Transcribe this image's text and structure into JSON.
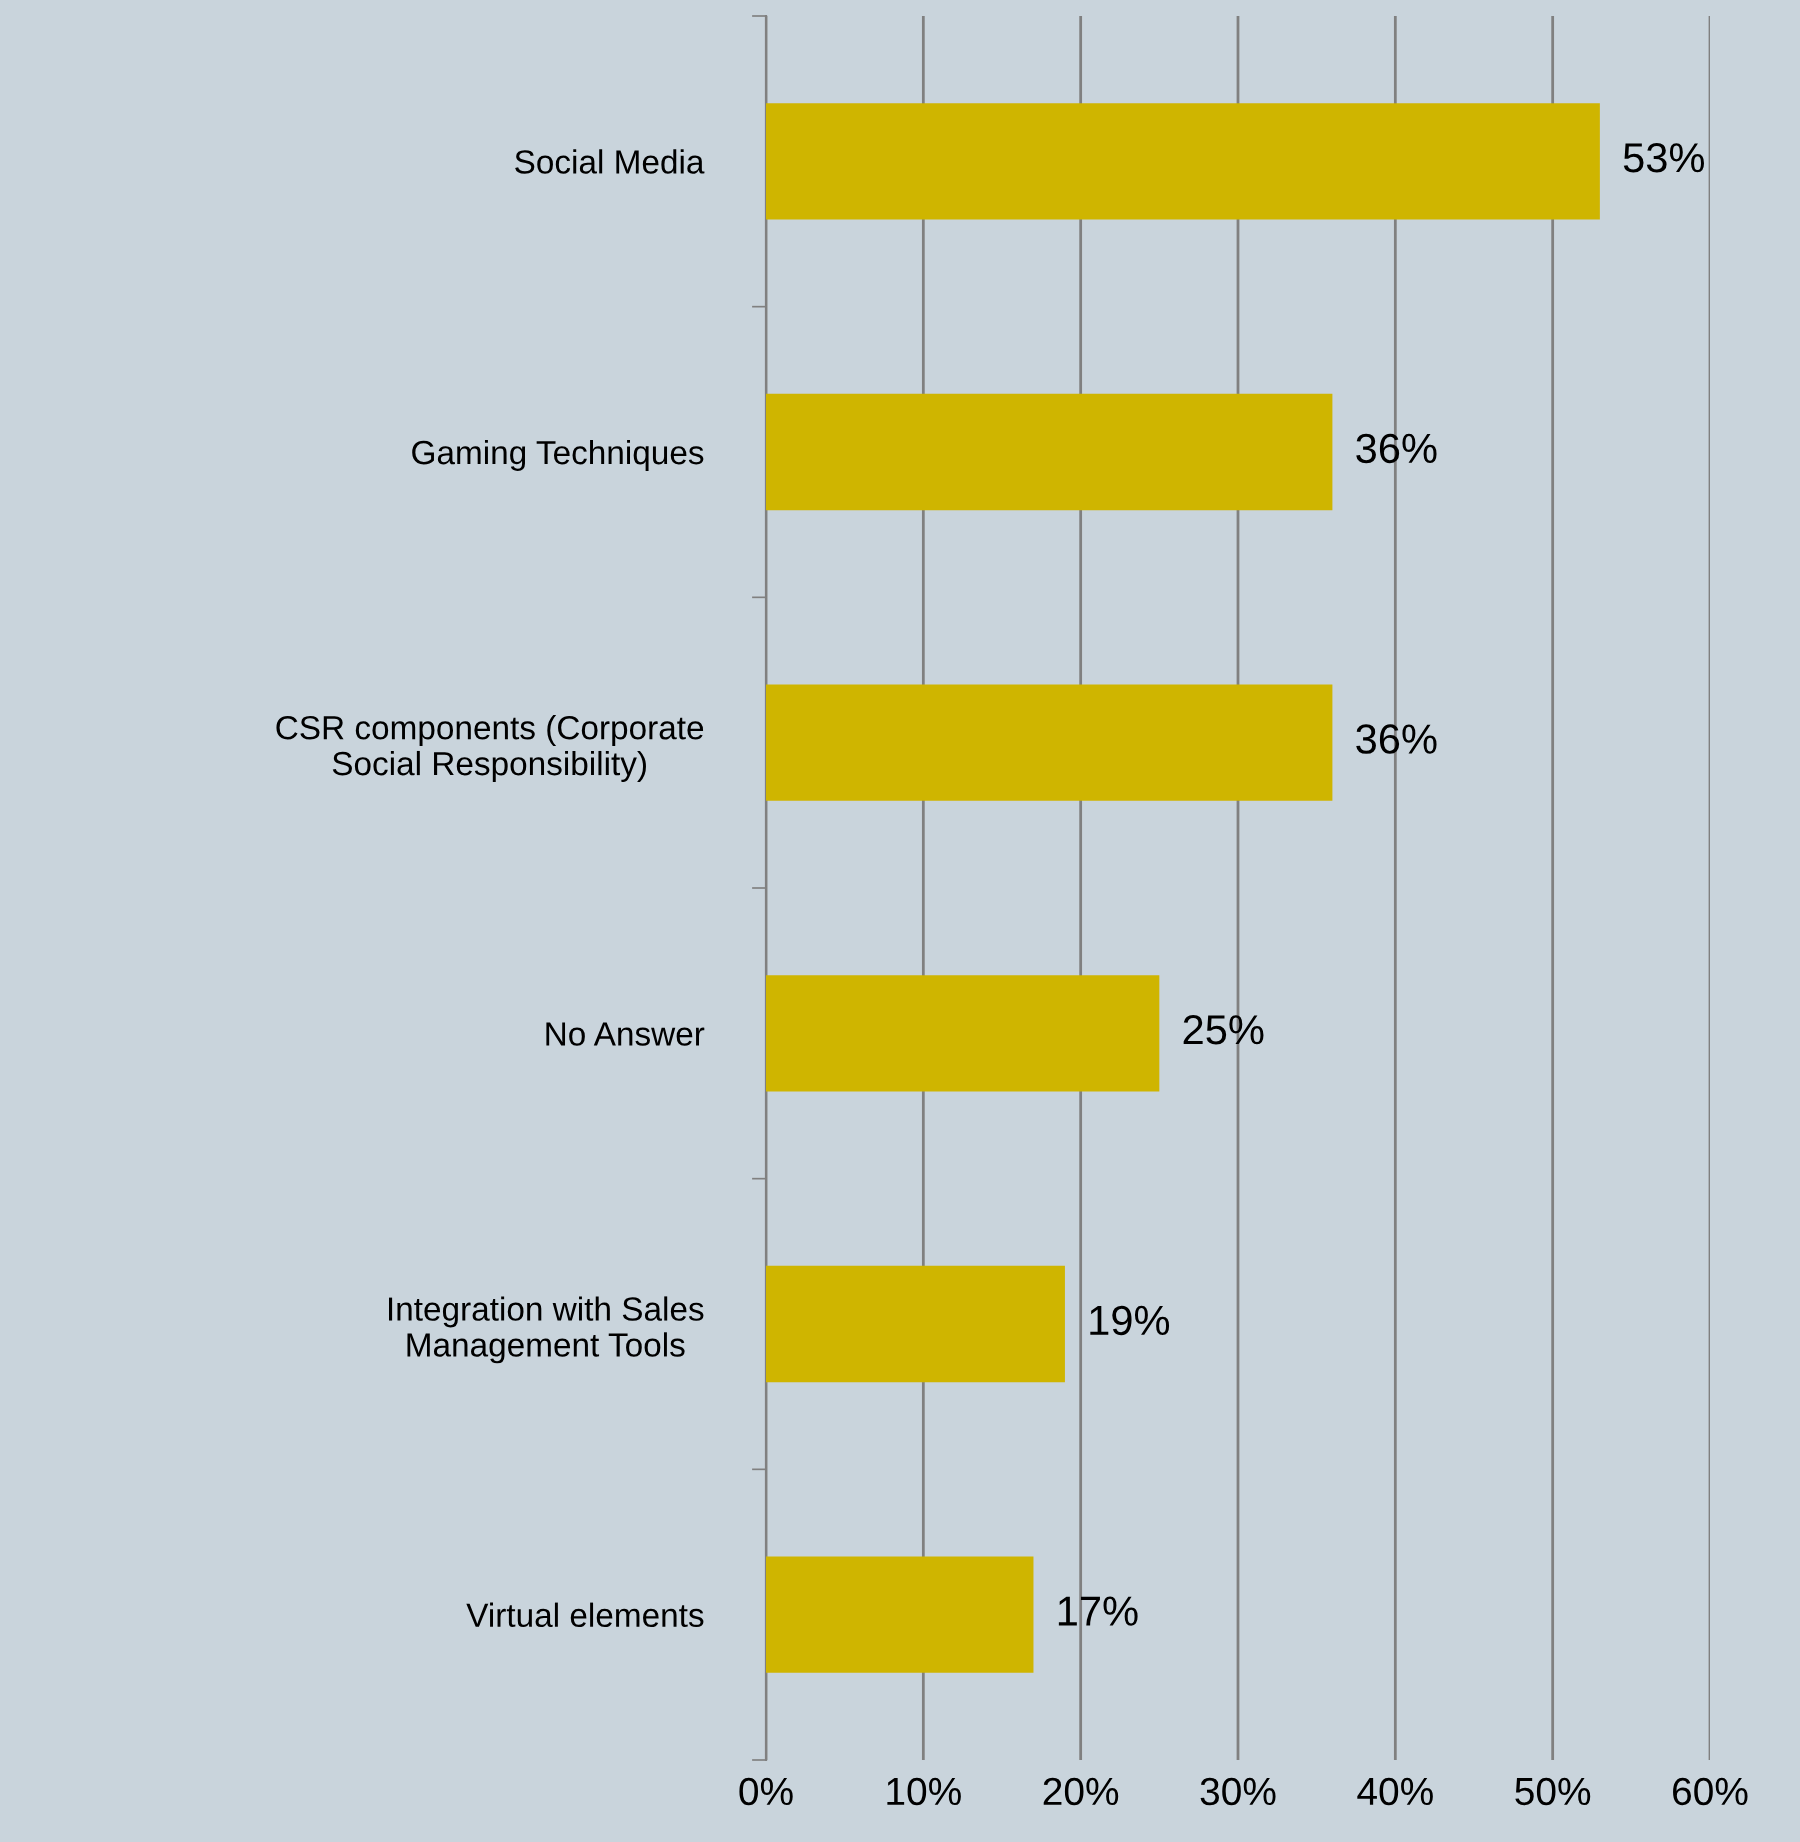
{
  "chart_data": {
    "type": "bar",
    "orientation": "horizontal",
    "categories": [
      "Social Media",
      "Gaming Techniques",
      "CSR components (Corporate\nSocial Responsibility)",
      "No Answer",
      "Integration with Sales\nManagement Tools",
      "Virtual elements"
    ],
    "values": [
      53,
      36,
      36,
      25,
      19,
      17
    ],
    "value_labels": [
      "53%",
      "36%",
      "36%",
      "25%",
      "19%",
      "17%"
    ],
    "color": "#cfb500",
    "xlim": [
      0,
      60
    ],
    "xticks": [
      {
        "value": 0,
        "label": "0%"
      },
      {
        "value": 10,
        "label": "10%"
      },
      {
        "value": 20,
        "label": "20%"
      },
      {
        "value": 30,
        "label": "30%"
      },
      {
        "value": 40,
        "label": "40%"
      },
      {
        "value": 50,
        "label": "50%"
      },
      {
        "value": 60,
        "label": "60%"
      }
    ],
    "grid": "x"
  }
}
